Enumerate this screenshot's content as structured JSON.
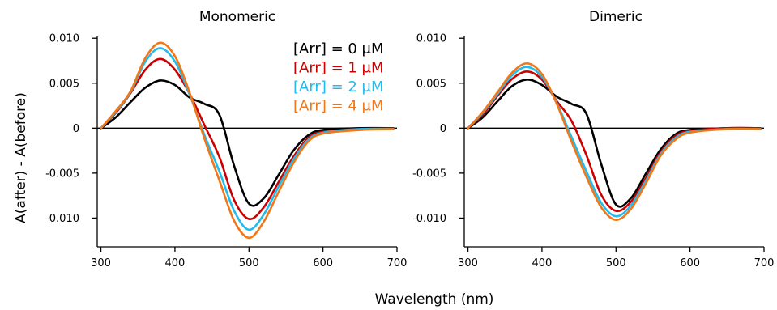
{
  "figure": {
    "xlabel": "Wavelength (nm)",
    "ylabel": "A(after) - A(before)"
  },
  "colors": {
    "black": "#000000",
    "red": "#cc0000",
    "cyan": "#22bbee",
    "orange": "#f07818"
  },
  "chart_data": [
    {
      "type": "line",
      "title": "Monomeric",
      "xlabel": "Wavelength (nm)",
      "ylabel": "A(after) - A(before)",
      "xlim": [
        295,
        700
      ],
      "ylim": [
        -0.0132,
        0.0102
      ],
      "x_ticks": [
        300,
        400,
        500,
        600,
        700
      ],
      "y_ticks": [
        0.01,
        0.005,
        0,
        -0.005,
        -0.01
      ],
      "y_tick_labels": [
        "0.010",
        "0.005",
        "0",
        "-0.005",
        "-0.010"
      ],
      "zero_line": true,
      "legend": {
        "placement": "top-right",
        "entries": [
          "[Arr] = 0 μM",
          "[Arr] = 1 μM",
          "[Arr] = 2 μM",
          "[Arr] = 4 μM"
        ]
      },
      "x": [
        300,
        320,
        340,
        360,
        380,
        400,
        420,
        440,
        460,
        480,
        500,
        520,
        540,
        560,
        580,
        600,
        650,
        695
      ],
      "series": [
        {
          "name": "[Arr] = 0 μM",
          "color": "#000000",
          "values": [
            0.0,
            0.0012,
            0.0029,
            0.0045,
            0.0053,
            0.0048,
            0.0034,
            0.0027,
            0.0015,
            -0.0042,
            -0.0084,
            -0.0078,
            -0.0052,
            -0.0025,
            -0.0008,
            -0.0002,
            0.0,
            0.0
          ]
        },
        {
          "name": "[Arr] = 1 μM",
          "color": "#cc0000",
          "values": [
            0.0,
            0.0017,
            0.0039,
            0.0065,
            0.0077,
            0.0065,
            0.0038,
            0.0003,
            -0.0032,
            -0.008,
            -0.0101,
            -0.0088,
            -0.006,
            -0.0032,
            -0.0011,
            -0.0004,
            -0.0001,
            0.0
          ]
        },
        {
          "name": "[Arr] = 2 μM",
          "color": "#22bbee",
          "values": [
            0.0,
            0.0018,
            0.004,
            0.0074,
            0.0089,
            0.0074,
            0.0037,
            -0.0008,
            -0.0048,
            -0.0092,
            -0.0113,
            -0.0096,
            -0.0065,
            -0.0035,
            -0.0013,
            -0.0005,
            -0.0001,
            -0.0001
          ]
        },
        {
          "name": "[Arr] = 4 μM",
          "color": "#f07818",
          "values": [
            0.0,
            0.0019,
            0.0041,
            0.0078,
            0.0095,
            0.008,
            0.0039,
            -0.0012,
            -0.0058,
            -0.0103,
            -0.0122,
            -0.0104,
            -0.0071,
            -0.0039,
            -0.0015,
            -0.0006,
            -0.0002,
            -0.0001
          ]
        }
      ]
    },
    {
      "type": "line",
      "title": "Dimeric",
      "xlabel": "Wavelength (nm)",
      "ylabel": "",
      "xlim": [
        295,
        700
      ],
      "ylim": [
        -0.0132,
        0.0102
      ],
      "x_ticks": [
        300,
        400,
        500,
        600,
        700
      ],
      "y_ticks": [
        0.01,
        0.005,
        0,
        -0.005,
        -0.01
      ],
      "y_tick_labels": [
        "0.010",
        "0.005",
        "0",
        "-0.005",
        "-0.010"
      ],
      "zero_line": true,
      "x": [
        300,
        320,
        340,
        360,
        380,
        400,
        420,
        440,
        460,
        480,
        500,
        520,
        540,
        560,
        580,
        600,
        650,
        695
      ],
      "series": [
        {
          "name": "[Arr] = 0 μM",
          "color": "#000000",
          "values": [
            0.0,
            0.0012,
            0.003,
            0.0047,
            0.0054,
            0.0048,
            0.0035,
            0.0027,
            0.0016,
            -0.004,
            -0.0085,
            -0.0078,
            -0.0051,
            -0.0024,
            -0.0007,
            -0.0002,
            0.0,
            0.0
          ]
        },
        {
          "name": "[Arr] = 1 μM",
          "color": "#cc0000",
          "values": [
            0.0,
            0.0015,
            0.0036,
            0.0055,
            0.0063,
            0.0054,
            0.003,
            0.0008,
            -0.003,
            -0.0074,
            -0.0092,
            -0.0082,
            -0.0056,
            -0.0027,
            -0.0009,
            -0.0003,
            0.0,
            0.0
          ]
        },
        {
          "name": "[Arr] = 2 μM",
          "color": "#22bbee",
          "values": [
            0.0,
            0.0017,
            0.0038,
            0.0059,
            0.0068,
            0.0057,
            0.0028,
            -0.001,
            -0.0048,
            -0.0083,
            -0.0098,
            -0.0086,
            -0.0059,
            -0.0029,
            -0.0011,
            -0.0004,
            -0.0001,
            -0.0001
          ]
        },
        {
          "name": "[Arr] = 4 μM",
          "color": "#f07818",
          "values": [
            0.0,
            0.0018,
            0.004,
            0.0062,
            0.0072,
            0.006,
            0.0027,
            -0.0015,
            -0.0054,
            -0.0088,
            -0.0102,
            -0.009,
            -0.0062,
            -0.0031,
            -0.0013,
            -0.0005,
            -0.0001,
            -0.0001
          ]
        }
      ]
    }
  ]
}
